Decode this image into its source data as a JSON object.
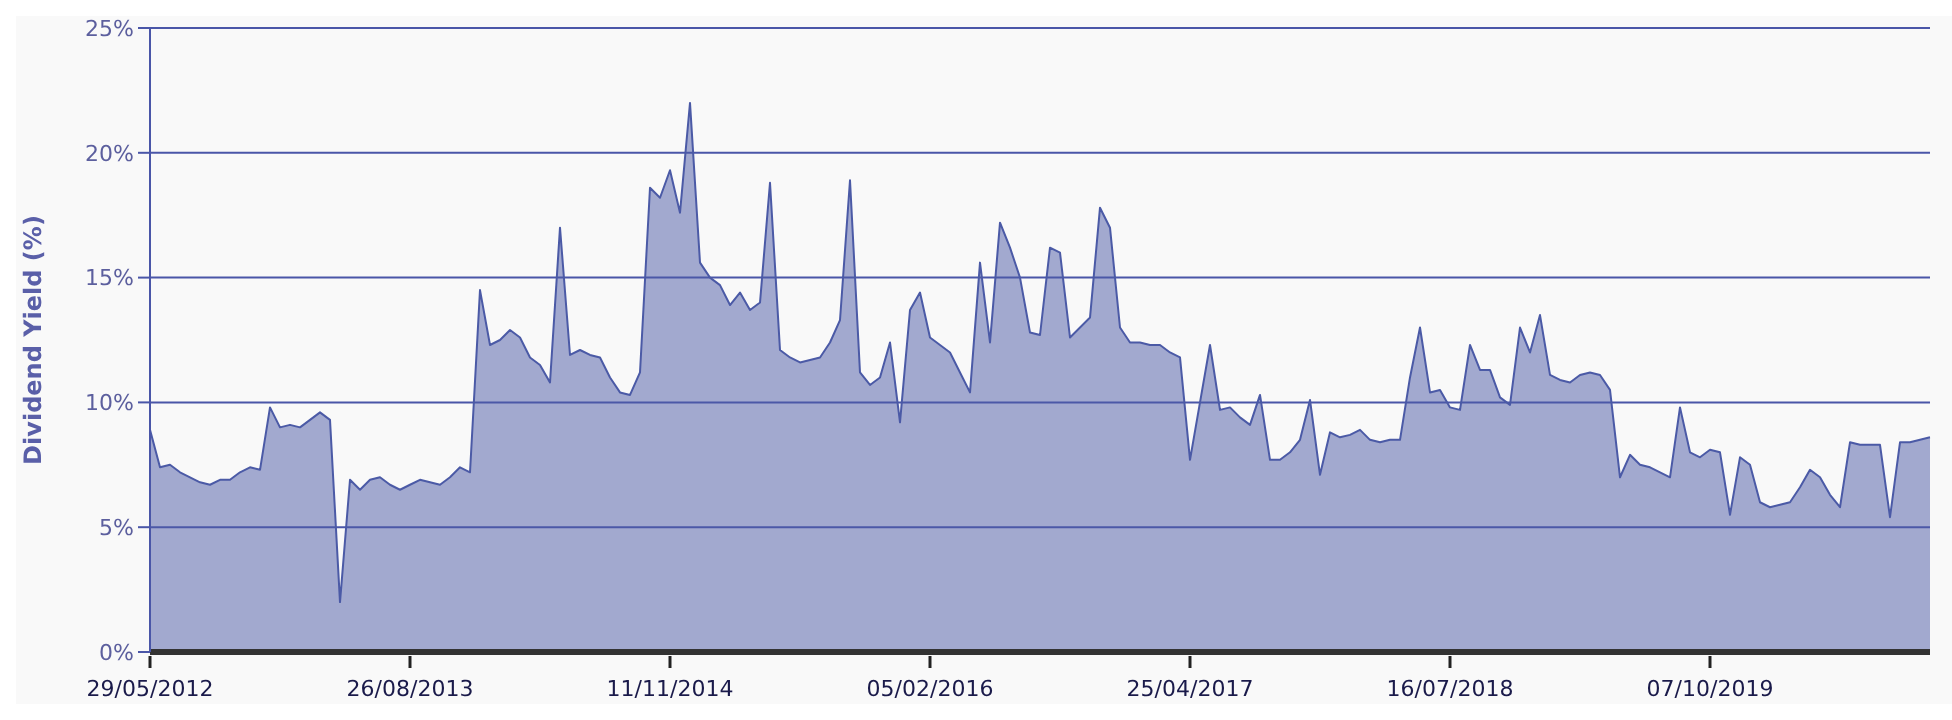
{
  "chart_data": {
    "type": "area",
    "ylabel": "Dividend Yield (%)",
    "color": "#4b5aa6",
    "categories": [
      "29/05/2012",
      null,
      null,
      null,
      null,
      null,
      null,
      null,
      null,
      null,
      null,
      null,
      null,
      null,
      null,
      null,
      null,
      null,
      null,
      null,
      null,
      null,
      null,
      null,
      null,
      null,
      "26/08/2013",
      null,
      null,
      null,
      null,
      null,
      null,
      null,
      null,
      null,
      null,
      null,
      null,
      null,
      null,
      null,
      null,
      null,
      null,
      null,
      null,
      null,
      null,
      null,
      null,
      null,
      "11/11/2014",
      null,
      null,
      null,
      null,
      null,
      null,
      null,
      null,
      null,
      null,
      null,
      null,
      null,
      null,
      null,
      null,
      null,
      null,
      null,
      null,
      null,
      null,
      null,
      null,
      null,
      "05/02/2016",
      null,
      null,
      null,
      null,
      null,
      null,
      null,
      null,
      null,
      null,
      null,
      null,
      null,
      null,
      null,
      null,
      null,
      null,
      null,
      null,
      null,
      null,
      null,
      null,
      null,
      "25/04/2017",
      null,
      null,
      null,
      null,
      null,
      null,
      null,
      null,
      null,
      null,
      null,
      null,
      null,
      null,
      null,
      null,
      null,
      null,
      null,
      null,
      null,
      null,
      null,
      null,
      null,
      "16/07/2018",
      null,
      null,
      null,
      null,
      null,
      null,
      null,
      null,
      null,
      null,
      null,
      null,
      null,
      null,
      null,
      null,
      null,
      null,
      null,
      null,
      null,
      null,
      null,
      null,
      null,
      "07/10/2019",
      null,
      null,
      null,
      null,
      null,
      null,
      null,
      null,
      null,
      null,
      null,
      null,
      null,
      null,
      null,
      null,
      null,
      null,
      null,
      null,
      null,
      null
    ],
    "values": [
      8.9,
      7.4,
      7.5,
      7.2,
      7.0,
      6.8,
      6.7,
      6.9,
      6.9,
      7.2,
      7.4,
      7.3,
      9.8,
      9.0,
      9.1,
      9.0,
      9.3,
      9.6,
      9.3,
      2.0,
      6.9,
      6.5,
      6.9,
      7.0,
      6.7,
      6.5,
      6.7,
      6.9,
      6.8,
      6.7,
      7.0,
      7.4,
      7.2,
      14.5,
      12.3,
      12.5,
      12.9,
      12.6,
      11.8,
      11.5,
      10.8,
      17.0,
      11.9,
      12.1,
      11.9,
      11.8,
      11.0,
      10.4,
      10.3,
      11.2,
      18.6,
      18.2,
      19.3,
      17.6,
      22.0,
      15.6,
      15.0,
      14.7,
      13.9,
      14.4,
      13.7,
      14.0,
      18.8,
      12.1,
      11.8,
      11.6,
      11.7,
      11.8,
      12.4,
      13.3,
      18.9,
      11.2,
      10.7,
      11.0,
      12.4,
      9.2,
      13.7,
      14.4,
      12.6,
      12.3,
      12.0,
      11.2,
      10.4,
      15.6,
      12.4,
      17.2,
      16.2,
      15.0,
      12.8,
      12.7,
      16.2,
      16.0,
      12.6,
      13.0,
      13.4,
      17.8,
      17.0,
      13.0,
      12.4,
      12.4,
      12.3,
      12.3,
      12.0,
      11.8,
      7.7,
      10.0,
      12.3,
      9.7,
      9.8,
      9.4,
      9.1,
      10.3,
      7.7,
      7.7,
      8.0,
      8.5,
      10.1,
      7.1,
      8.8,
      8.6,
      8.7,
      8.9,
      8.5,
      8.4,
      8.5,
      8.5,
      11.0,
      13.0,
      10.4,
      10.5,
      9.8,
      9.7,
      12.3,
      11.3,
      11.3,
      10.2,
      9.9,
      13.0,
      12.0,
      13.5,
      11.1,
      10.9,
      10.8,
      11.1,
      11.2,
      11.1,
      10.5,
      7.0,
      7.9,
      7.5,
      7.4,
      7.2,
      7.0,
      9.8,
      8.0,
      7.8,
      8.1,
      8.0,
      5.5,
      7.8,
      7.5,
      6.0,
      5.8,
      5.9,
      6.0,
      6.6,
      7.3,
      7.0,
      6.3,
      5.8,
      8.4,
      8.3,
      8.3,
      8.3,
      5.4,
      8.4,
      8.4,
      8.5,
      8.6
    ],
    "ylim": [
      0,
      25
    ],
    "yticks": [
      {
        "value": 0,
        "label": "0%"
      },
      {
        "value": 5,
        "label": "5%"
      },
      {
        "value": 10,
        "label": "10%"
      },
      {
        "value": 15,
        "label": "15%"
      },
      {
        "value": 20,
        "label": "20%"
      },
      {
        "value": 25,
        "label": "25%"
      }
    ],
    "grid": "y"
  }
}
